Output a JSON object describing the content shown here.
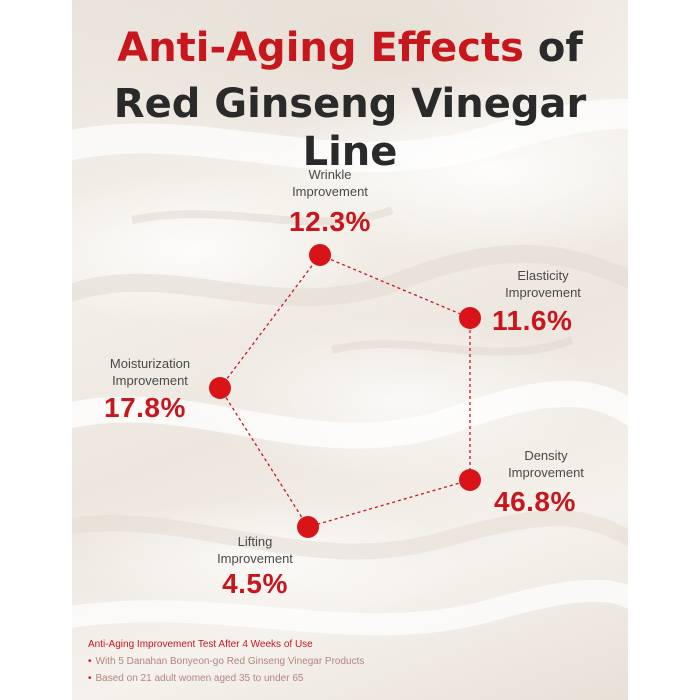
{
  "title": {
    "line1_accent": "Anti-Aging Effects",
    "line1_rest": " of",
    "line2": "Red Ginseng Vinegar Line"
  },
  "metrics": {
    "wrinkle": {
      "label_line1": "Wrinkle",
      "label_line2": "Improvement",
      "value": "12.3%"
    },
    "elasticity": {
      "label_line1": "Elasticity",
      "label_line2": "Improvement",
      "value": "11.6%"
    },
    "density": {
      "label_line1": "Density",
      "label_line2": "Improvement",
      "value": "46.8%"
    },
    "lifting": {
      "label_line1": "Lifting",
      "label_line2": "Improvement",
      "value": "4.5%"
    },
    "moisturization": {
      "label_line1": "Moisturization",
      "label_line2": "Improvement",
      "value": "17.8%"
    }
  },
  "footer": {
    "title": "Anti-Aging Improvement Test After 4 Weeks of Use",
    "items": [
      "With 5 Danahan Bonyeon-go Red Ginseng Vinegar Products",
      "Based on 21 adult women aged 35 to under 65"
    ]
  },
  "colors": {
    "accent": "#c8161d",
    "text": "#2a2a2a",
    "background": "#f1ece5"
  }
}
